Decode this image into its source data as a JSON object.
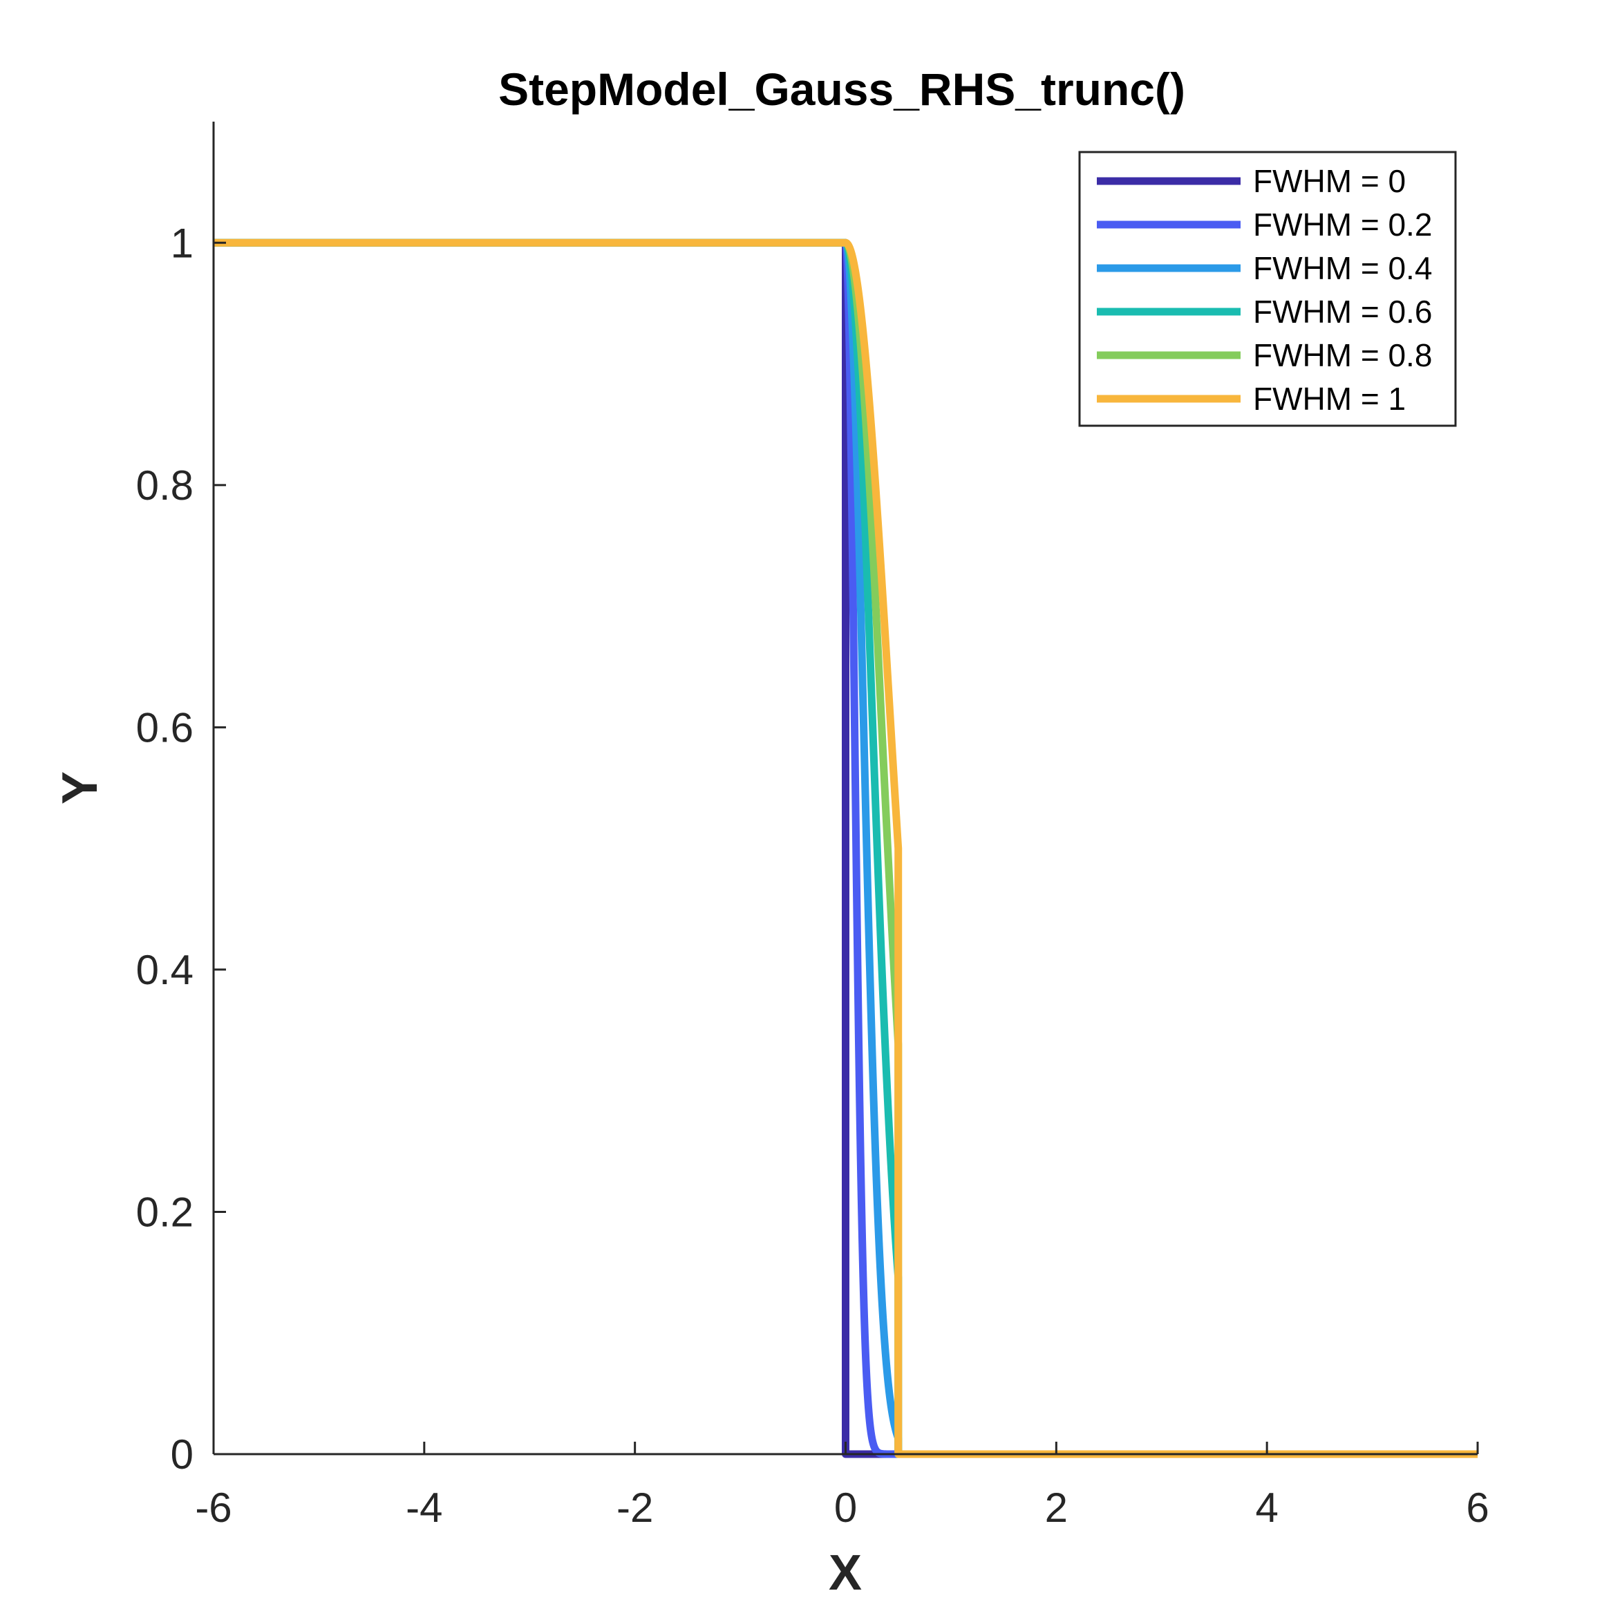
{
  "chart_data": {
    "type": "line",
    "title": "StepModel_Gauss_RHS_trunc()",
    "xlabel": "X",
    "ylabel": "Y",
    "xlim": [
      -6,
      6
    ],
    "ylim": [
      0,
      1.1
    ],
    "xticks": [
      -6,
      -4,
      -2,
      0,
      2,
      4,
      6
    ],
    "yticks": [
      0,
      0.2,
      0.4,
      0.6,
      0.8,
      1
    ],
    "xtick_labels": [
      "-6",
      "-4",
      "-2",
      "0",
      "2",
      "4",
      "6"
    ],
    "ytick_labels": [
      "0",
      "0.2",
      "0.4",
      "0.6",
      "0.8",
      "1"
    ],
    "grid": false,
    "legend_position": "top-right",
    "truncation_x": 0.5,
    "series": [
      {
        "name": "FWHM = 0",
        "fwhm": 0,
        "color": "#3b2ca6"
      },
      {
        "name": "FWHM = 0.2",
        "fwhm": 0.2,
        "color": "#4a5cf2"
      },
      {
        "name": "FWHM = 0.4",
        "fwhm": 0.4,
        "color": "#2b9ae8"
      },
      {
        "name": "FWHM = 0.6",
        "fwhm": 0.6,
        "color": "#1abcb0"
      },
      {
        "name": "FWHM = 0.8",
        "fwhm": 0.8,
        "color": "#84cc5c"
      },
      {
        "name": "FWHM = 1",
        "fwhm": 1,
        "color": "#f8b63c"
      }
    ]
  }
}
